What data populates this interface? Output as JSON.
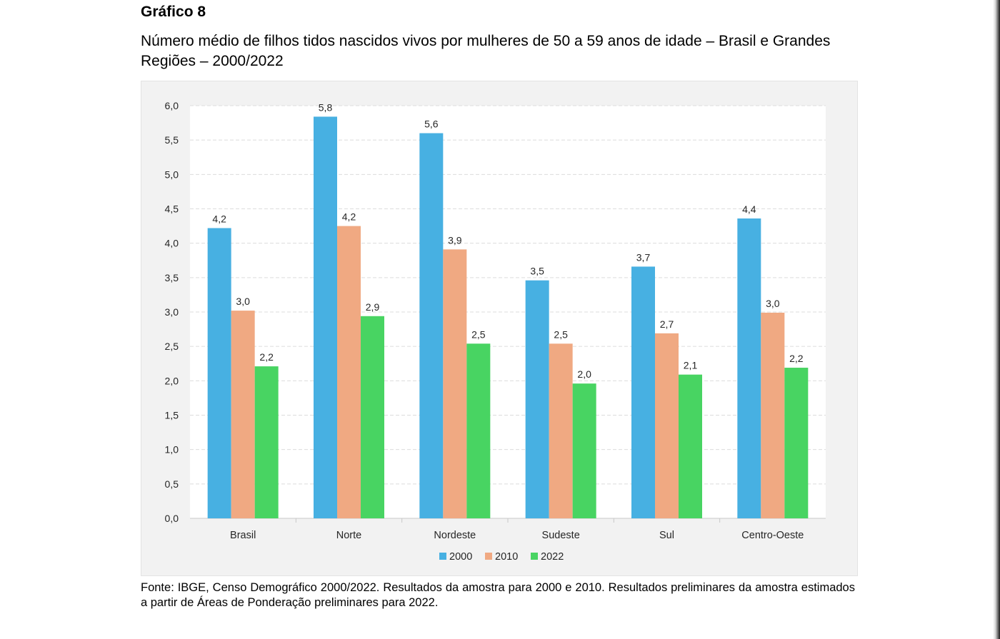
{
  "figure": {
    "label": "Gráfico 8",
    "title": "Número médio de filhos tidos nascidos vivos por mulheres de 50 a 59 anos de idade – Brasil e Grandes Regiões – 2000/2022",
    "source": "Fonte: IBGE, Censo Demográfico 2000/2022. Resultados da amostra para 2000 e 2010. Resultados preliminares da amostra estimados a partir de Áreas de Ponderação preliminares para 2022."
  },
  "chart_data": {
    "type": "bar",
    "categories": [
      "Brasil",
      "Norte",
      "Nordeste",
      "Sudeste",
      "Sul",
      "Centro-Oeste"
    ],
    "series": [
      {
        "name": "2000",
        "values": [
          4.2,
          5.8,
          5.6,
          3.5,
          3.7,
          4.4
        ],
        "actual": [
          4.22,
          5.84,
          5.6,
          3.46,
          3.66,
          4.36
        ],
        "color": "#47b0e2"
      },
      {
        "name": "2010",
        "values": [
          3.0,
          4.2,
          3.9,
          2.5,
          2.7,
          3.0
        ],
        "actual": [
          3.02,
          4.25,
          3.91,
          2.54,
          2.69,
          2.99
        ],
        "color": "#f0a982"
      },
      {
        "name": "2022",
        "values": [
          2.2,
          2.9,
          2.5,
          2.0,
          2.1,
          2.2
        ],
        "actual": [
          2.21,
          2.94,
          2.54,
          1.96,
          2.09,
          2.19
        ],
        "color": "#48d462"
      }
    ],
    "data_labels": [
      [
        "4,2",
        "5,8",
        "5,6",
        "3,5",
        "3,7",
        "4,4"
      ],
      [
        "3,0",
        "4,2",
        "3,9",
        "2,5",
        "2,7",
        "3,0"
      ],
      [
        "2,2",
        "2,9",
        "2,5",
        "2,0",
        "2,1",
        "2,2"
      ]
    ],
    "y_ticks": [
      0.0,
      0.5,
      1.0,
      1.5,
      2.0,
      2.5,
      3.0,
      3.5,
      4.0,
      4.5,
      5.0,
      5.5,
      6.0
    ],
    "y_tick_labels": [
      "0,0",
      "0,5",
      "1,0",
      "1,5",
      "2,0",
      "2,5",
      "3,0",
      "3,5",
      "4,0",
      "4,5",
      "5,0",
      "5,5",
      "6,0"
    ],
    "ylim": [
      0,
      6
    ],
    "grid": true,
    "legend_position": "bottom",
    "xlabel": "",
    "ylabel": ""
  }
}
